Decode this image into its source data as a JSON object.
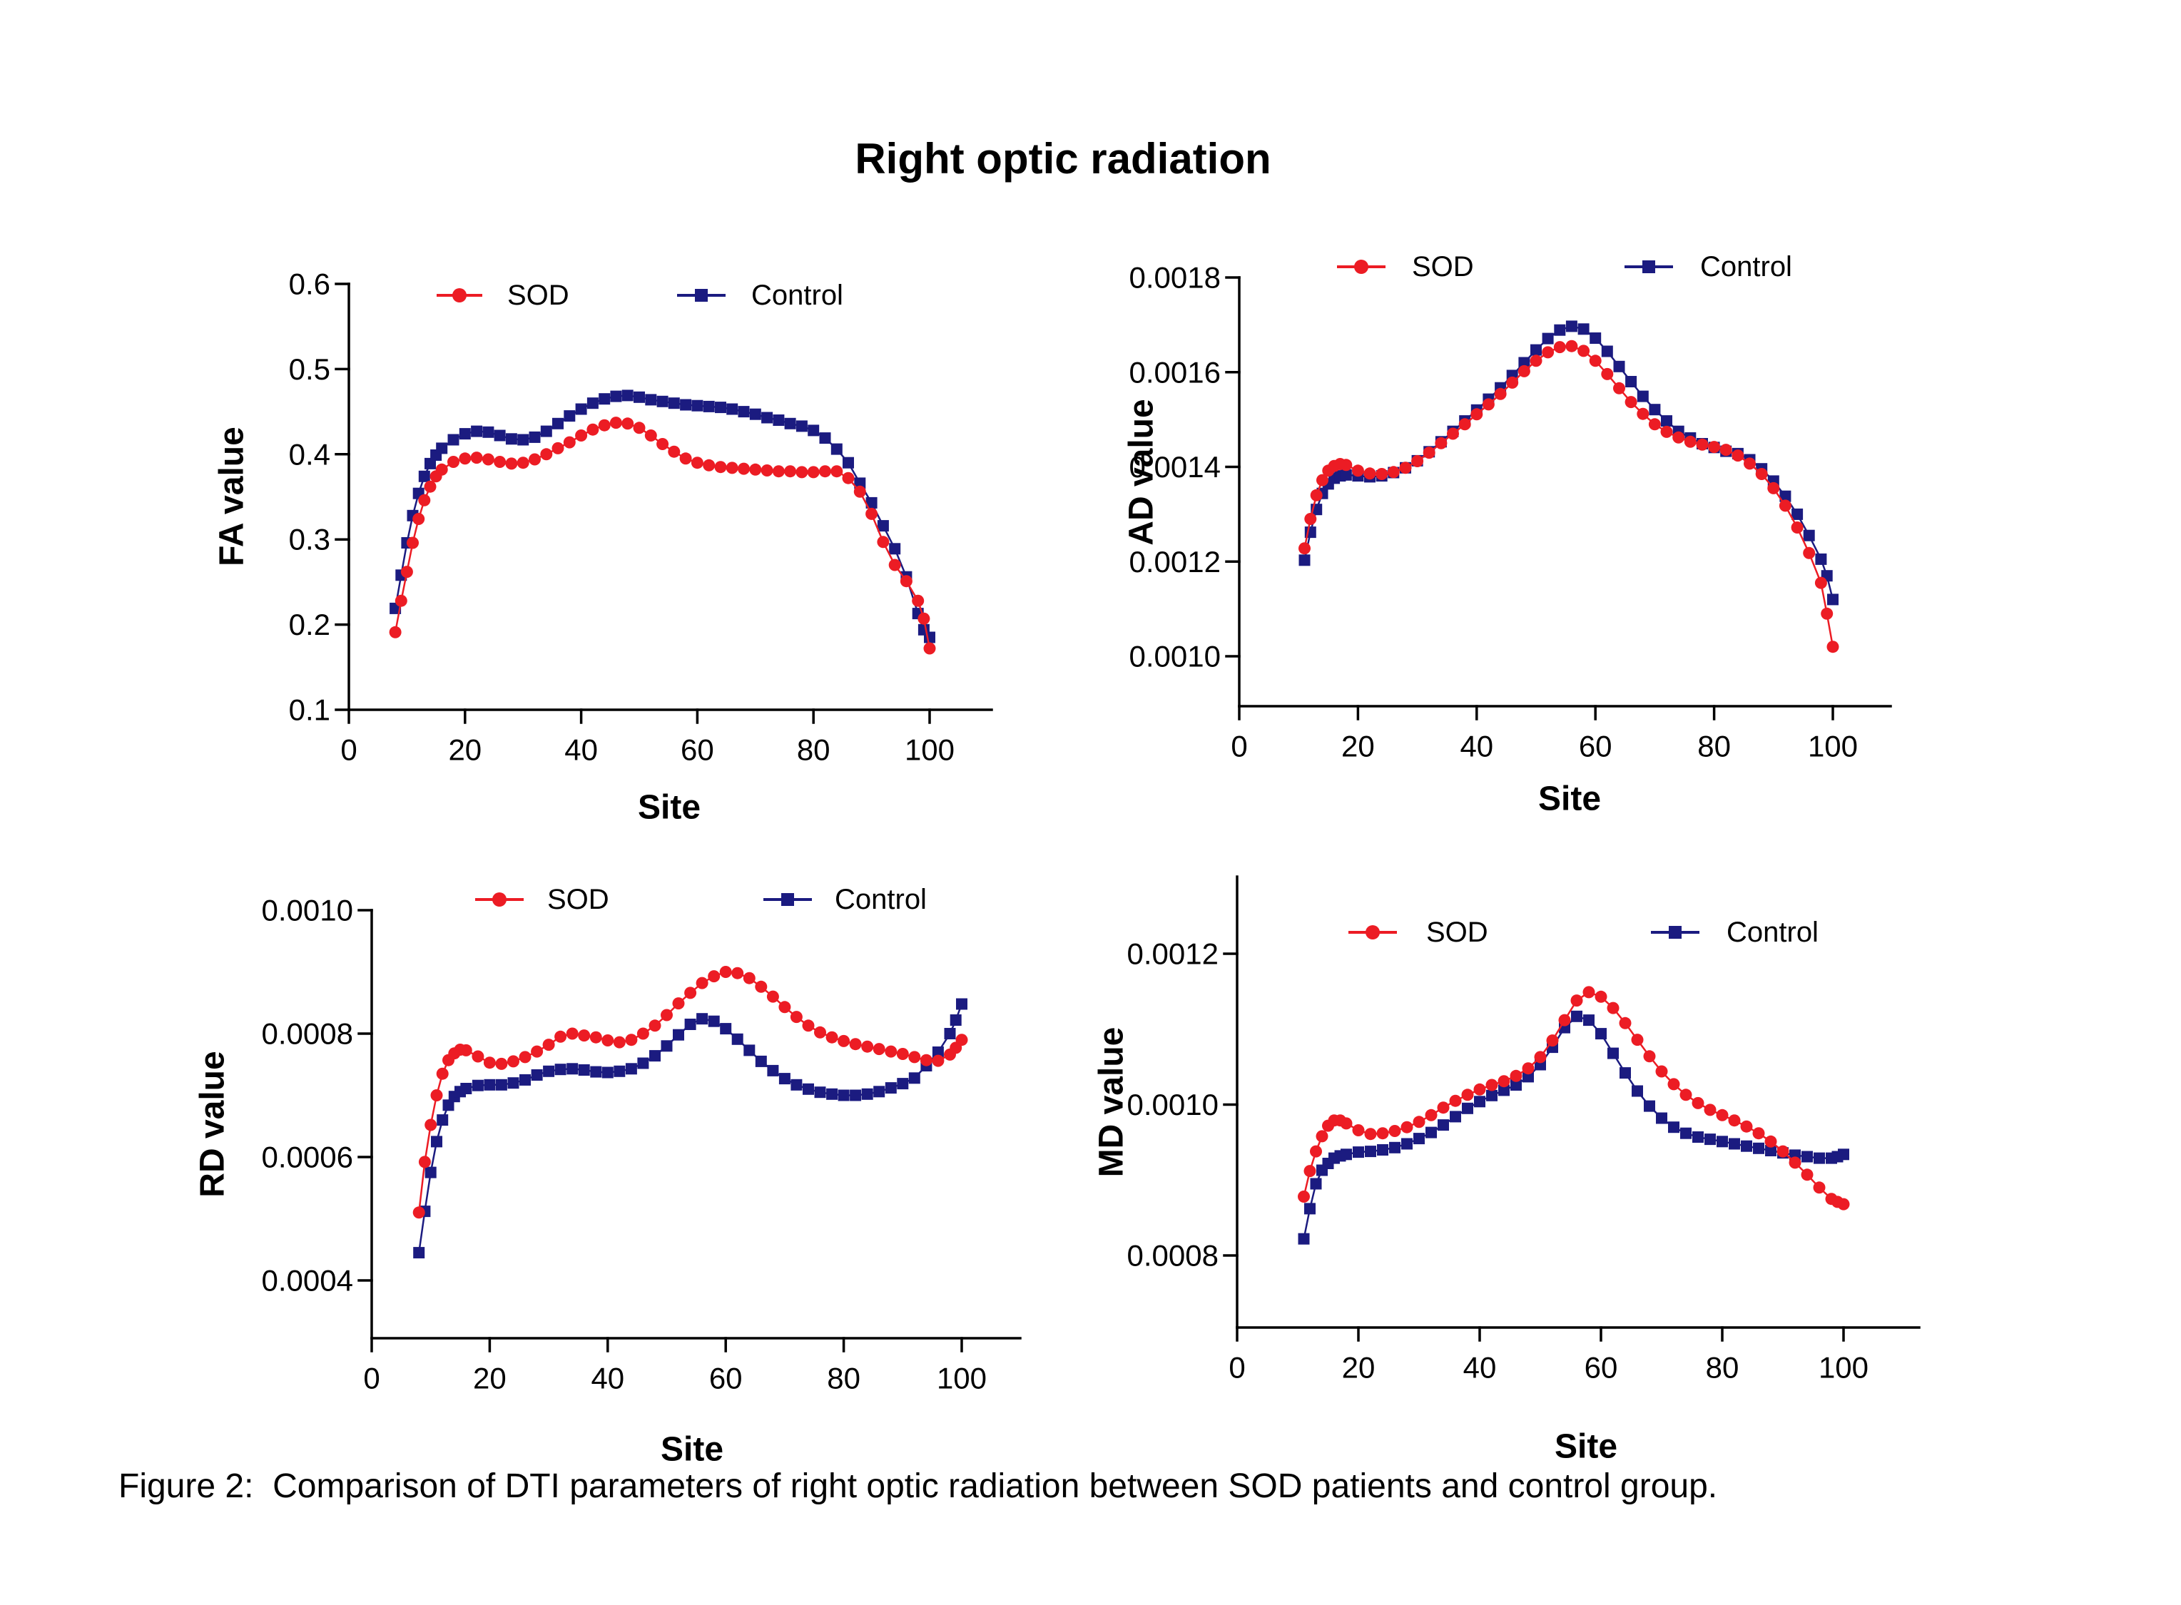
{
  "title": "Right optic radiation",
  "caption": "Figure 2:  Comparison of DTI parameters of right optic radiation between SOD patients and control group.",
  "colors": {
    "sod": "#EC1C24",
    "control": "#1B1B80",
    "axis": "#000000"
  },
  "legend": {
    "sod_label": "SOD",
    "control_label": "Control",
    "position": "top"
  },
  "chart_data": [
    {
      "id": "fa",
      "type": "line",
      "title": "",
      "xlabel": "Site",
      "ylabel": "FA value",
      "xlim": [
        0,
        110
      ],
      "ylim": [
        0.1,
        0.6
      ],
      "grid": false,
      "legend_position": "top",
      "xticks": [
        0,
        20,
        40,
        60,
        80,
        100
      ],
      "yticks": [
        0.6,
        0.5,
        0.4,
        0.3,
        0.2,
        0.1
      ],
      "ytick_labels": [
        "0.6",
        "0.5",
        "0.4",
        "0.3",
        "0.2",
        "0.1"
      ],
      "series": [
        {
          "name": "SOD",
          "marker": "circle",
          "color": "#EC1C24",
          "x": [
            8,
            9,
            10,
            11,
            12,
            13,
            14,
            15,
            16,
            18,
            20,
            22,
            24,
            26,
            28,
            30,
            32,
            34,
            36,
            38,
            40,
            42,
            44,
            46,
            48,
            50,
            52,
            54,
            56,
            58,
            60,
            62,
            64,
            66,
            68,
            70,
            72,
            74,
            76,
            78,
            80,
            82,
            84,
            86,
            88,
            90,
            92,
            94,
            96,
            98,
            99,
            100
          ],
          "y": [
            0.191,
            0.228,
            0.262,
            0.296,
            0.324,
            0.346,
            0.362,
            0.374,
            0.382,
            0.391,
            0.395,
            0.396,
            0.394,
            0.391,
            0.389,
            0.39,
            0.394,
            0.4,
            0.407,
            0.414,
            0.422,
            0.429,
            0.434,
            0.437,
            0.436,
            0.431,
            0.422,
            0.412,
            0.403,
            0.395,
            0.39,
            0.387,
            0.385,
            0.384,
            0.383,
            0.382,
            0.381,
            0.38,
            0.38,
            0.379,
            0.379,
            0.38,
            0.38,
            0.372,
            0.356,
            0.33,
            0.297,
            0.27,
            0.251,
            0.228,
            0.207,
            0.172
          ]
        },
        {
          "name": "Control",
          "marker": "square",
          "color": "#1B1B80",
          "x": [
            8,
            9,
            10,
            11,
            12,
            13,
            14,
            15,
            16,
            18,
            20,
            22,
            24,
            26,
            28,
            30,
            32,
            34,
            36,
            38,
            40,
            42,
            44,
            46,
            48,
            50,
            52,
            54,
            56,
            58,
            60,
            62,
            64,
            66,
            68,
            70,
            72,
            74,
            76,
            78,
            80,
            82,
            84,
            86,
            88,
            90,
            92,
            94,
            96,
            98,
            99,
            100
          ],
          "y": [
            0.219,
            0.258,
            0.296,
            0.328,
            0.354,
            0.374,
            0.389,
            0.399,
            0.407,
            0.417,
            0.424,
            0.427,
            0.426,
            0.422,
            0.418,
            0.417,
            0.42,
            0.427,
            0.436,
            0.445,
            0.453,
            0.46,
            0.465,
            0.468,
            0.469,
            0.467,
            0.464,
            0.462,
            0.46,
            0.458,
            0.457,
            0.456,
            0.455,
            0.453,
            0.45,
            0.447,
            0.443,
            0.44,
            0.436,
            0.433,
            0.428,
            0.419,
            0.406,
            0.39,
            0.366,
            0.343,
            0.316,
            0.289,
            0.256,
            0.213,
            0.194,
            0.185
          ]
        }
      ]
    },
    {
      "id": "ad",
      "type": "line",
      "title": "",
      "xlabel": "Site",
      "ylabel": "AD value",
      "xlim": [
        0,
        110
      ],
      "ylim": [
        0.001,
        0.0018
      ],
      "grid": false,
      "legend_position": "top",
      "xticks": [
        0,
        20,
        40,
        60,
        80,
        100
      ],
      "yticks": [
        0.0018,
        0.0016,
        0.0014,
        0.0012,
        0.001
      ],
      "ytick_labels": [
        "0.0018",
        "0.0016",
        "0.0014",
        "0.0012",
        "0.0010"
      ],
      "series": [
        {
          "name": "SOD",
          "marker": "circle",
          "color": "#EC1C24",
          "x": [
            11,
            12,
            13,
            14,
            15,
            16,
            17,
            18,
            20,
            22,
            24,
            26,
            28,
            30,
            32,
            34,
            36,
            38,
            40,
            42,
            44,
            46,
            48,
            50,
            52,
            54,
            56,
            58,
            60,
            62,
            64,
            66,
            68,
            70,
            72,
            74,
            76,
            78,
            80,
            82,
            84,
            86,
            88,
            90,
            92,
            94,
            96,
            98,
            99,
            100
          ],
          "y": [
            0.001228,
            0.00129,
            0.00134,
            0.001372,
            0.001392,
            0.001402,
            0.001406,
            0.001404,
            0.001392,
            0.001386,
            0.001385,
            0.001389,
            0.001398,
            0.001412,
            0.00143,
            0.00145,
            0.00147,
            0.00149,
            0.001511,
            0.001532,
            0.001554,
            0.001578,
            0.001602,
            0.001624,
            0.001642,
            0.001653,
            0.001655,
            0.001645,
            0.001624,
            0.001596,
            0.001566,
            0.001537,
            0.001512,
            0.00149,
            0.001474,
            0.001462,
            0.001453,
            0.001447,
            0.001442,
            0.001436,
            0.001424,
            0.001407,
            0.001385,
            0.001355,
            0.001318,
            0.001272,
            0.001218,
            0.001155,
            0.00109,
            0.00102
          ]
        },
        {
          "name": "Control",
          "marker": "square",
          "color": "#1B1B80",
          "x": [
            11,
            12,
            13,
            14,
            15,
            16,
            17,
            18,
            20,
            22,
            24,
            26,
            28,
            30,
            32,
            34,
            36,
            38,
            40,
            42,
            44,
            46,
            48,
            50,
            52,
            54,
            56,
            58,
            60,
            62,
            64,
            66,
            68,
            70,
            72,
            74,
            76,
            78,
            80,
            82,
            84,
            86,
            88,
            90,
            92,
            94,
            96,
            98,
            99,
            100
          ],
          "y": [
            0.001203,
            0.001262,
            0.00131,
            0.001344,
            0.001364,
            0.001376,
            0.001381,
            0.001383,
            0.001381,
            0.001379,
            0.001381,
            0.001388,
            0.001398,
            0.001413,
            0.001432,
            0.001453,
            0.001475,
            0.001497,
            0.00152,
            0.001543,
            0.001567,
            0.001593,
            0.00162,
            0.001647,
            0.001671,
            0.001689,
            0.001697,
            0.001691,
            0.001672,
            0.001644,
            0.001612,
            0.00158,
            0.001549,
            0.001521,
            0.001497,
            0.001475,
            0.001461,
            0.001449,
            0.001441,
            0.001433,
            0.001428,
            0.001415,
            0.001396,
            0.00137,
            0.001338,
            0.0013,
            0.001255,
            0.001205,
            0.00117,
            0.00112
          ]
        }
      ]
    },
    {
      "id": "rd",
      "type": "line",
      "title": "",
      "xlabel": "Site",
      "ylabel": "RD value",
      "xlim": [
        0,
        110
      ],
      "ylim": [
        0.0004,
        0.001
      ],
      "grid": false,
      "legend_position": "top",
      "xticks": [
        0,
        20,
        40,
        60,
        80,
        100
      ],
      "yticks": [
        0.001,
        0.0008,
        0.0006,
        0.0004
      ],
      "ytick_labels": [
        "0.0010",
        "0.0008",
        "0.0006",
        "0.0004"
      ],
      "series": [
        {
          "name": "SOD",
          "marker": "circle",
          "color": "#EC1C24",
          "x": [
            8,
            9,
            10,
            11,
            12,
            13,
            14,
            15,
            16,
            18,
            20,
            22,
            24,
            26,
            28,
            30,
            32,
            34,
            36,
            38,
            40,
            42,
            44,
            46,
            48,
            50,
            52,
            54,
            56,
            58,
            60,
            62,
            64,
            66,
            68,
            70,
            72,
            74,
            76,
            78,
            80,
            82,
            84,
            86,
            88,
            90,
            92,
            94,
            96,
            98,
            99,
            100
          ],
          "y": [
            0.00051,
            0.000592,
            0.000652,
            0.0007,
            0.000735,
            0.000757,
            0.000768,
            0.000774,
            0.000773,
            0.000763,
            0.000753,
            0.000751,
            0.000755,
            0.000762,
            0.000771,
            0.000782,
            0.000795,
            0.0008,
            0.000797,
            0.000794,
            0.000789,
            0.000786,
            0.00079,
            0.0008,
            0.000813,
            0.00083,
            0.000849,
            0.000866,
            0.000882,
            0.000893,
            0.0009,
            0.000898,
            0.00089,
            0.000876,
            0.00086,
            0.000843,
            0.000827,
            0.000813,
            0.000802,
            0.000794,
            0.000788,
            0.000783,
            0.000779,
            0.000775,
            0.000771,
            0.000767,
            0.000762,
            0.000757,
            0.000756,
            0.000766,
            0.000777,
            0.00079
          ]
        },
        {
          "name": "Control",
          "marker": "square",
          "color": "#1B1B80",
          "x": [
            8,
            9,
            10,
            11,
            12,
            13,
            14,
            15,
            16,
            18,
            20,
            22,
            24,
            26,
            28,
            30,
            32,
            34,
            36,
            38,
            40,
            42,
            44,
            46,
            48,
            50,
            52,
            54,
            56,
            58,
            60,
            62,
            64,
            66,
            68,
            70,
            72,
            74,
            76,
            78,
            80,
            82,
            84,
            86,
            88,
            90,
            92,
            94,
            96,
            98,
            99,
            100
          ],
          "y": [
            0.000445,
            0.000512,
            0.000575,
            0.000625,
            0.00066,
            0.000684,
            0.000698,
            0.000706,
            0.000711,
            0.000716,
            0.000717,
            0.000717,
            0.00072,
            0.000725,
            0.000733,
            0.000739,
            0.000742,
            0.000743,
            0.000741,
            0.000738,
            0.000737,
            0.000739,
            0.000743,
            0.000752,
            0.000764,
            0.00078,
            0.000798,
            0.000815,
            0.000824,
            0.00082,
            0.000808,
            0.000791,
            0.000773,
            0.000755,
            0.00074,
            0.000727,
            0.000717,
            0.00071,
            0.000705,
            0.000702,
            0.0007,
            0.0007,
            0.000702,
            0.000706,
            0.000712,
            0.000719,
            0.000728,
            0.000748,
            0.00077,
            0.0008,
            0.000822,
            0.000848
          ]
        }
      ]
    },
    {
      "id": "md",
      "type": "line",
      "title": "",
      "xlabel": "Site",
      "ylabel": "MD value",
      "xlim": [
        0,
        110
      ],
      "ylim": [
        0.0008,
        0.0012
      ],
      "grid": false,
      "legend_position": "top",
      "xticks": [
        0,
        20,
        40,
        60,
        80,
        100
      ],
      "yticks": [
        0.0012,
        0.001,
        0.0008
      ],
      "ytick_labels": [
        "0.0012",
        "0.0010",
        "0.0008"
      ],
      "series": [
        {
          "name": "SOD",
          "marker": "circle",
          "color": "#EC1C24",
          "x": [
            11,
            12,
            13,
            14,
            15,
            16,
            17,
            18,
            20,
            22,
            24,
            26,
            28,
            30,
            32,
            34,
            36,
            38,
            40,
            42,
            44,
            46,
            48,
            50,
            52,
            54,
            56,
            58,
            60,
            62,
            64,
            66,
            68,
            70,
            72,
            74,
            76,
            78,
            80,
            82,
            84,
            86,
            88,
            90,
            92,
            94,
            96,
            98,
            99,
            100
          ],
          "y": [
            0.000878,
            0.000912,
            0.000938,
            0.000958,
            0.000972,
            0.000979,
            0.000979,
            0.000975,
            0.000966,
            0.000961,
            0.000962,
            0.000965,
            0.00097,
            0.000977,
            0.000986,
            0.000996,
            0.001005,
            0.001013,
            0.00102,
            0.001026,
            0.001031,
            0.001038,
            0.001048,
            0.001063,
            0.001085,
            0.001112,
            0.001138,
            0.001149,
            0.001143,
            0.001128,
            0.001108,
            0.001086,
            0.001064,
            0.001044,
            0.001027,
            0.001013,
            0.001002,
            0.000993,
            0.000986,
            0.000979,
            0.000971,
            0.000962,
            0.000951,
            0.000938,
            0.000923,
            0.000907,
            0.00089,
            0.000875,
            0.000871,
            0.000868
          ]
        },
        {
          "name": "Control",
          "marker": "square",
          "color": "#1B1B80",
          "x": [
            11,
            12,
            13,
            14,
            15,
            16,
            17,
            18,
            20,
            22,
            24,
            26,
            28,
            30,
            32,
            34,
            36,
            38,
            40,
            42,
            44,
            46,
            48,
            50,
            52,
            54,
            56,
            58,
            60,
            62,
            64,
            66,
            68,
            70,
            72,
            74,
            76,
            78,
            80,
            82,
            84,
            86,
            88,
            90,
            92,
            94,
            96,
            98,
            99,
            100
          ],
          "y": [
            0.000822,
            0.000862,
            0.000895,
            0.000913,
            0.000922,
            0.000929,
            0.000932,
            0.000934,
            0.000937,
            0.000938,
            0.00094,
            0.000943,
            0.000948,
            0.000955,
            0.000963,
            0.000973,
            0.000984,
            0.000995,
            0.001004,
            0.001012,
            0.001019,
            0.001026,
            0.001037,
            0.001053,
            0.001076,
            0.001102,
            0.001117,
            0.001112,
            0.001094,
            0.001068,
            0.001042,
            0.001018,
            0.000998,
            0.000982,
            0.00097,
            0.000962,
            0.000957,
            0.000954,
            0.000951,
            0.000948,
            0.000945,
            0.000942,
            0.000939,
            0.000936,
            0.000933,
            0.000931,
            0.000929,
            0.000929,
            0.000931,
            0.000934
          ]
        }
      ]
    }
  ]
}
